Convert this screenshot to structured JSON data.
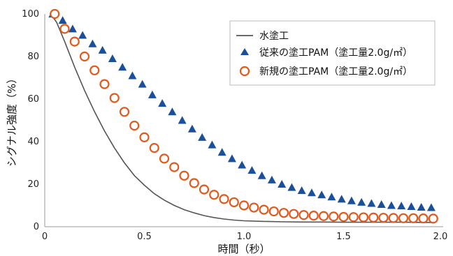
{
  "chart_data": {
    "type": "scatter",
    "xlabel": "時間（秒）",
    "ylabel": "シグナル強度（%）",
    "xlim": [
      0,
      2.0
    ],
    "ylim": [
      0,
      100
    ],
    "x_ticks": [
      "0",
      "0.5",
      "1.0",
      "1.5",
      "2.0"
    ],
    "y_ticks": [
      "0",
      "20",
      "40",
      "60",
      "80",
      "100"
    ],
    "grid": false,
    "legend_position": "top-right",
    "series": [
      {
        "name": "水塗工",
        "kind": "line",
        "color": "#555555",
        "x": [
          0.03,
          0.06,
          0.1,
          0.15,
          0.2,
          0.25,
          0.3,
          0.35,
          0.4,
          0.45,
          0.5,
          0.55,
          0.6,
          0.65,
          0.7,
          0.75,
          0.8,
          0.85,
          0.9,
          0.95,
          1.0,
          1.1,
          1.2,
          1.3,
          1.4,
          1.5,
          1.6,
          1.7,
          1.8,
          1.9,
          1.95
        ],
        "values": [
          100,
          96,
          87,
          75,
          64,
          54,
          45,
          37,
          30,
          24,
          19.5,
          15.5,
          12.5,
          10,
          8,
          6.5,
          5.2,
          4.3,
          3.6,
          3.1,
          2.8,
          2.5,
          2.3,
          2.2,
          2.2,
          2.1,
          2.1,
          2.1,
          2.1,
          2.0,
          2.0
        ]
      },
      {
        "name": "従来の塗工PAM（塗工量2.0g/㎡）",
        "kind": "triangle",
        "color": "#1a4f9c",
        "x": [
          0.04,
          0.09,
          0.14,
          0.19,
          0.24,
          0.29,
          0.34,
          0.39,
          0.44,
          0.49,
          0.54,
          0.59,
          0.64,
          0.69,
          0.74,
          0.79,
          0.84,
          0.89,
          0.94,
          0.99,
          1.04,
          1.09,
          1.14,
          1.19,
          1.24,
          1.29,
          1.34,
          1.39,
          1.44,
          1.49,
          1.54,
          1.59,
          1.64,
          1.69,
          1.74,
          1.79,
          1.84,
          1.89,
          1.94
        ],
        "values": [
          100,
          97,
          93,
          90,
          86,
          83,
          79,
          75,
          71,
          67,
          62,
          58,
          54,
          50,
          46,
          42,
          38.5,
          35,
          32,
          29,
          26.5,
          24,
          22,
          20,
          18.5,
          17,
          16,
          15,
          14,
          13,
          12.2,
          11.5,
          11,
          10.5,
          10,
          9.8,
          9.5,
          9.2,
          9
        ]
      },
      {
        "name": "新規の塗工PAM（塗工量2.0g/㎡）",
        "kind": "circle",
        "color": "#e05a1e",
        "x": [
          0.05,
          0.1,
          0.15,
          0.2,
          0.25,
          0.3,
          0.35,
          0.4,
          0.45,
          0.5,
          0.55,
          0.6,
          0.65,
          0.7,
          0.75,
          0.8,
          0.85,
          0.9,
          0.95,
          1.0,
          1.05,
          1.1,
          1.15,
          1.2,
          1.25,
          1.3,
          1.35,
          1.4,
          1.45,
          1.5,
          1.55,
          1.6,
          1.65,
          1.7,
          1.75,
          1.8,
          1.85,
          1.9,
          1.95
        ],
        "values": [
          100,
          93,
          87,
          80,
          73.5,
          67,
          60.5,
          54,
          47.5,
          42,
          37,
          32,
          28,
          24,
          20.5,
          17.5,
          15,
          13,
          11.5,
          10,
          9,
          8,
          7.2,
          6.5,
          6,
          5.5,
          5.2,
          5,
          4.8,
          4.6,
          4.5,
          4.4,
          4.3,
          4.2,
          4.1,
          4.0,
          4.0,
          3.9,
          3.8
        ]
      }
    ]
  }
}
